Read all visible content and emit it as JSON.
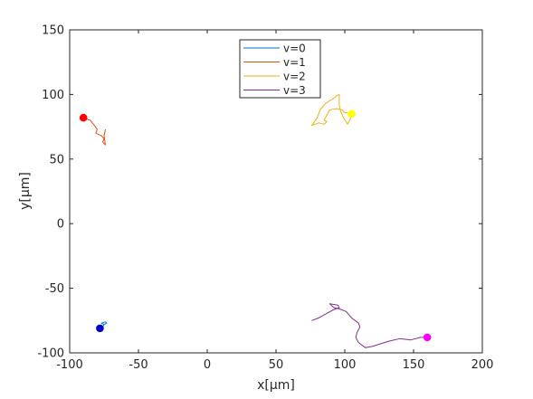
{
  "chart_data": {
    "type": "line",
    "title": "",
    "xlabel": "x[µm]",
    "ylabel": "y[µm]",
    "xlim": [
      -100,
      200
    ],
    "ylim": [
      -100,
      150
    ],
    "xticks": [
      -100,
      -50,
      0,
      50,
      100,
      150,
      200
    ],
    "yticks": [
      -100,
      -50,
      0,
      50,
      100,
      150
    ],
    "xtick_labels": [
      "-100",
      "-50",
      "0",
      "50",
      "100",
      "150",
      "200"
    ],
    "ytick_labels": [
      "-100",
      "-50",
      "0",
      "50",
      "100",
      "150"
    ],
    "grid": false,
    "legend_position": "top-center",
    "series": [
      {
        "name": "v=0",
        "color": "#0072BD",
        "x": [
          -78,
          -76,
          -75,
          -77,
          -74,
          -73,
          -75
        ],
        "y": [
          -81,
          -80,
          -78,
          -77,
          -76,
          -77,
          -78
        ]
      },
      {
        "name": "v=1",
        "color": "#D95319",
        "x": [
          -90,
          -85,
          -82,
          -80,
          -81,
          -77,
          -75,
          -76,
          -74,
          -75,
          -74
        ],
        "y": [
          82,
          80,
          76,
          73,
          70,
          68,
          66,
          63,
          61,
          68,
          73
        ]
      },
      {
        "name": "v=2",
        "color": "#EDB120",
        "x": [
          105,
          100,
          98,
          94,
          89,
          87,
          85,
          87,
          85,
          81,
          76,
          80,
          82,
          86,
          89,
          92,
          94,
          96,
          96,
          97,
          99,
          101,
          102,
          104,
          105
        ],
        "y": [
          85,
          86,
          88,
          89,
          88,
          84,
          80,
          79,
          77,
          78,
          76,
          82,
          88,
          93,
          95,
          97,
          99,
          100,
          92,
          87,
          82,
          79,
          77,
          81,
          85
        ]
      },
      {
        "name": "v=3",
        "color": "#7E2F8E",
        "x": [
          160,
          155,
          148,
          140,
          132,
          126,
          120,
          115,
          110,
          108,
          109,
          111,
          110,
          105,
          101,
          96,
          92,
          89,
          95,
          96,
          91,
          86,
          81,
          76
        ],
        "y": [
          -88,
          -88,
          -90,
          -89,
          -91,
          -93,
          -95,
          -96,
          -92,
          -88,
          -84,
          -80,
          -77,
          -73,
          -68,
          -66,
          -65,
          -62,
          -63,
          -65,
          -67,
          -70,
          -73,
          -75
        ]
      }
    ],
    "markers": [
      {
        "color": "#0000CC",
        "x": -78,
        "y": -81
      },
      {
        "color": "#FF0000",
        "x": -90,
        "y": 82
      },
      {
        "color": "#FFFF00",
        "x": 105,
        "y": 85
      },
      {
        "color": "#FF00FF",
        "x": 160,
        "y": -88
      }
    ]
  }
}
